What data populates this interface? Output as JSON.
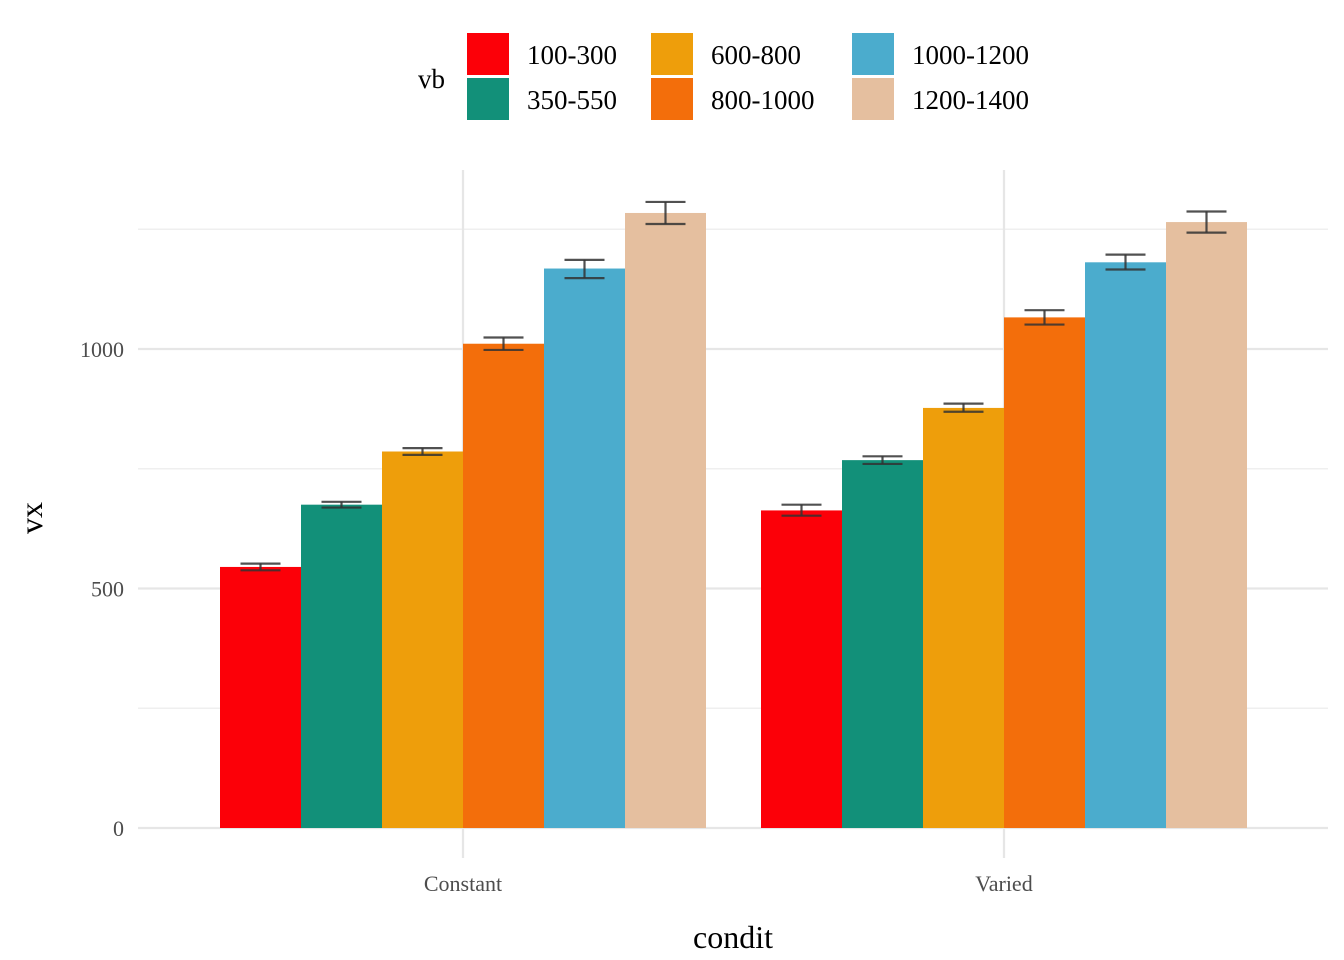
{
  "chart_data": {
    "type": "bar",
    "xlabel": "condit",
    "ylabel": "vx",
    "categories": [
      "Constant",
      "Varied"
    ],
    "ylim": [
      0,
      1300
    ],
    "yticks": [
      0,
      500,
      1000
    ],
    "grid": true,
    "legend": {
      "title": "vb",
      "placement": "top",
      "entries": [
        "100-300",
        "350-550",
        "600-800",
        "800-1000",
        "1000-1200",
        "1200-1400"
      ]
    },
    "series": [
      {
        "name": "100-300",
        "color": "#FC0008",
        "values": [
          545,
          663
        ],
        "err_low": [
          538,
          652
        ],
        "err_high": [
          552,
          675
        ]
      },
      {
        "name": "350-550",
        "color": "#129079",
        "values": [
          675,
          768
        ],
        "err_low": [
          669,
          760
        ],
        "err_high": [
          681,
          776
        ]
      },
      {
        "name": "600-800",
        "color": "#EE9E0B",
        "values": [
          786,
          877
        ],
        "err_low": [
          779,
          869
        ],
        "err_high": [
          793,
          886
        ]
      },
      {
        "name": "800-1000",
        "color": "#F36E0B",
        "values": [
          1011,
          1066
        ],
        "err_low": [
          998,
          1051
        ],
        "err_high": [
          1024,
          1081
        ]
      },
      {
        "name": "1000-1200",
        "color": "#4BACCD",
        "values": [
          1168,
          1181
        ],
        "err_low": [
          1148,
          1166
        ],
        "err_high": [
          1186,
          1197
        ]
      },
      {
        "name": "1200-1400",
        "color": "#E5BF9F",
        "values": [
          1284,
          1265
        ],
        "err_low": [
          1261,
          1243
        ],
        "err_high": [
          1307,
          1287
        ]
      }
    ]
  }
}
